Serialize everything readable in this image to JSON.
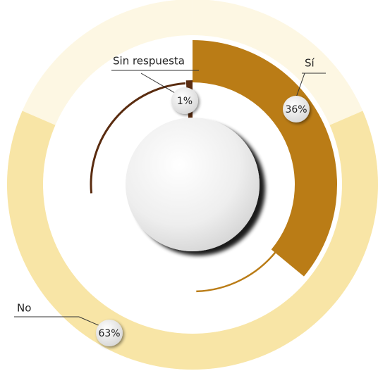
{
  "chart_data": {
    "type": "pie",
    "categories": [
      "Sí",
      "No",
      "Sin respuesta"
    ],
    "values": [
      36,
      63,
      1
    ],
    "value_labels": [
      "36%",
      "63%",
      "1%"
    ],
    "colors": [
      "#ba7c16",
      "#f8e5a6",
      "#5a2c10"
    ]
  }
}
